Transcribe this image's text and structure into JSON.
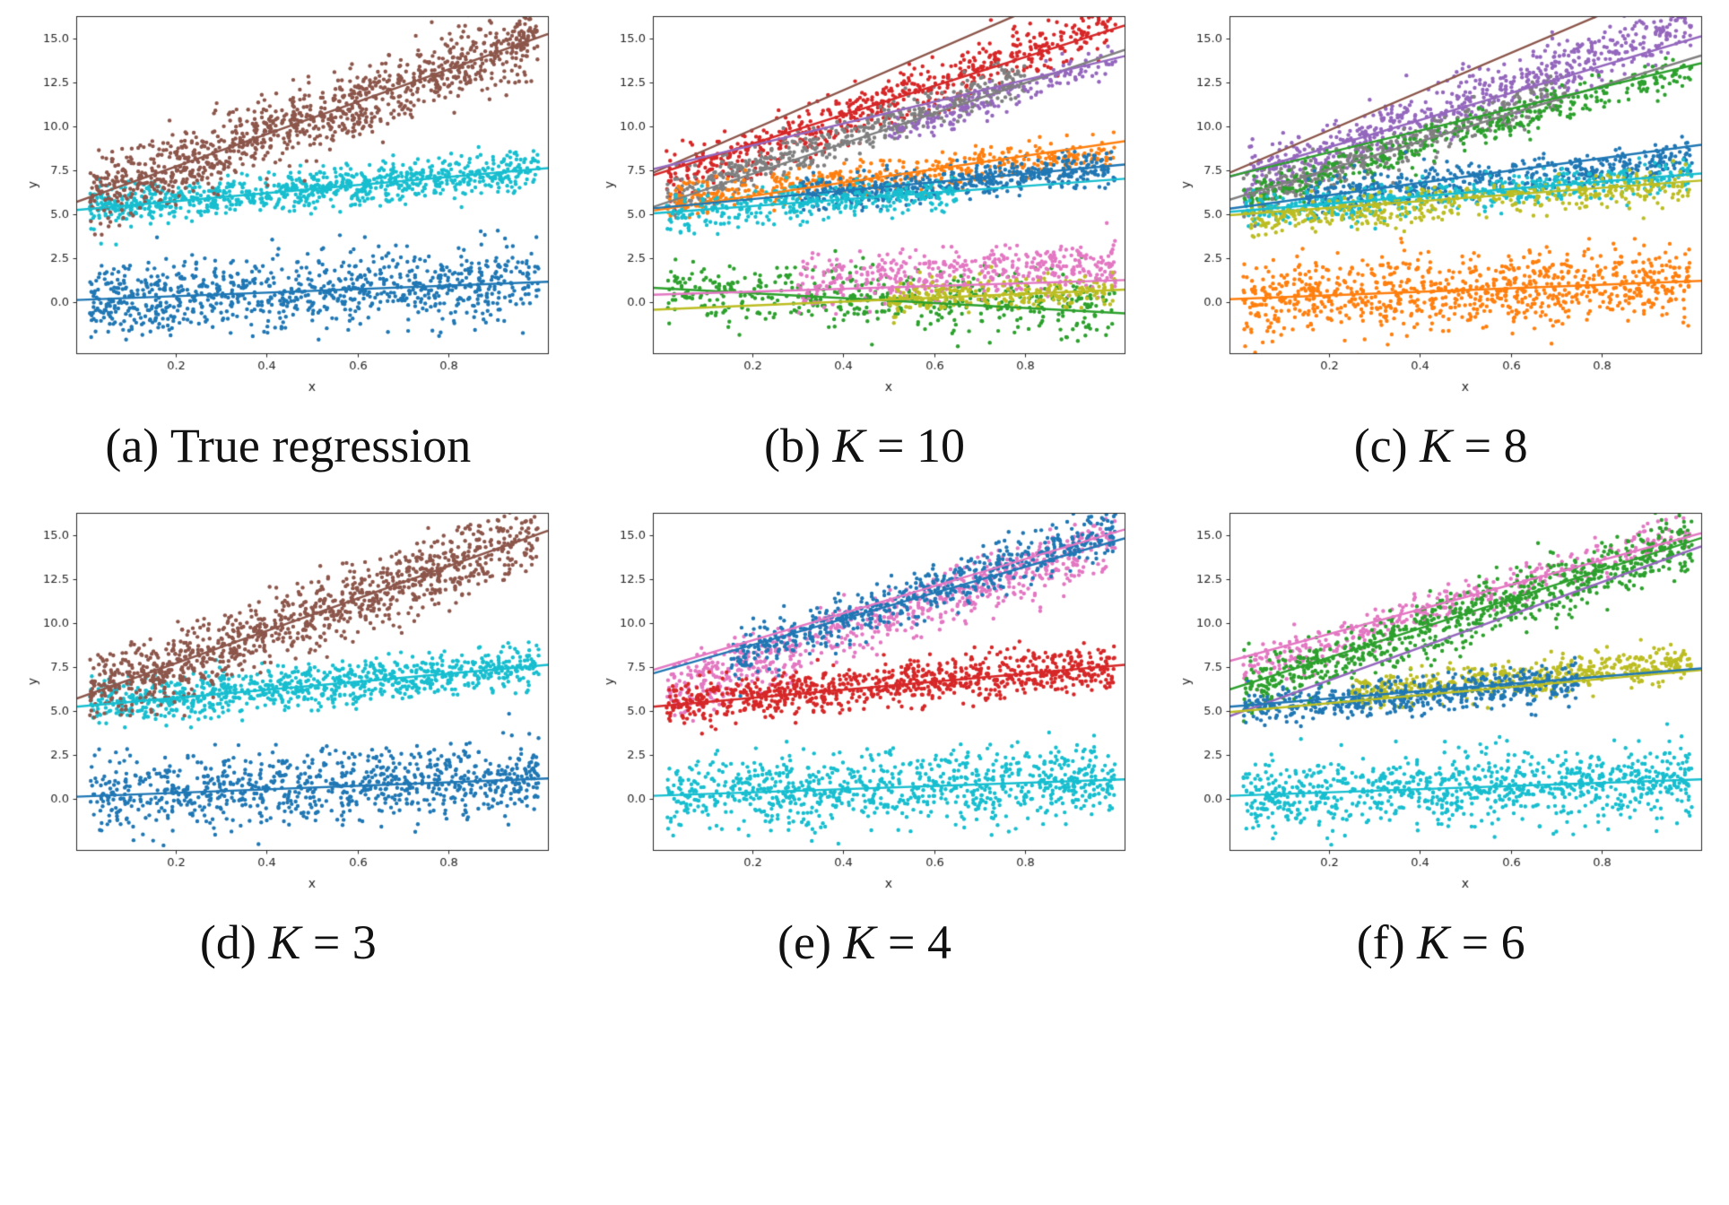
{
  "figure": {
    "background": "#ffffff",
    "layout": "2x3 grid of scatter subplots with captions below each subplot",
    "palette": {
      "blue": "#1f77b4",
      "orange": "#ff7f0e",
      "green": "#2ca02c",
      "red": "#d62728",
      "purple": "#9467bd",
      "brown": "#8c564b",
      "pink": "#e377c2",
      "gray": "#7f7f7f",
      "olive": "#bcbd22",
      "cyan": "#17becf"
    }
  },
  "chart_data": [
    {
      "id": "a",
      "type": "scatter",
      "caption": {
        "prefix": "(a) ",
        "var": "",
        "eq": "",
        "text": "True regression"
      },
      "xlabel": "x",
      "ylabel": "y",
      "xlim": [
        -0.02,
        1.02
      ],
      "ylim": [
        -2.9,
        16.3
      ],
      "xticks": [
        "0.2",
        "0.4",
        "0.6",
        "0.8"
      ],
      "yticks": [
        "0.0",
        "2.5",
        "5.0",
        "7.5",
        "10.0",
        "12.5",
        "15.0"
      ],
      "grid": false,
      "legend": false,
      "groups": [
        {
          "name": "cluster-low-blue",
          "color": "#1f77b4",
          "n": 900,
          "intercept": 0.15,
          "slope": 1.0,
          "noise": 1.05
        },
        {
          "name": "cluster-mid-cyan",
          "color": "#17becf",
          "n": 900,
          "intercept": 5.3,
          "slope": 2.3,
          "noise": 0.6
        },
        {
          "name": "cluster-high-brown",
          "color": "#8c564b",
          "n": 1100,
          "intercept": 5.9,
          "slope": 9.2,
          "noise": 1.0
        }
      ],
      "lines": [
        {
          "color": "#1f77b4",
          "intercept": 0.15,
          "slope": 1.0
        },
        {
          "color": "#17becf",
          "intercept": 5.3,
          "slope": 2.3
        },
        {
          "color": "#8c564b",
          "intercept": 5.9,
          "slope": 9.2
        }
      ]
    },
    {
      "id": "b",
      "type": "scatter",
      "caption": {
        "prefix": "(b) ",
        "var": "K",
        "eq": " = 10",
        "text": ""
      },
      "xlabel": "x",
      "ylabel": "y",
      "xlim": [
        -0.02,
        1.02
      ],
      "ylim": [
        -2.9,
        16.3
      ],
      "xticks": [
        "0.2",
        "0.4",
        "0.6",
        "0.8"
      ],
      "yticks": [
        "0.0",
        "2.5",
        "5.0",
        "7.5",
        "10.0",
        "12.5",
        "15.0"
      ],
      "grid": false,
      "legend": false,
      "groups": [
        {
          "name": "high-red",
          "color": "#d62728",
          "n": 650,
          "intercept": 6.8,
          "slope": 9.3,
          "noise": 0.75
        },
        {
          "name": "high-gray",
          "color": "#7f7f7f",
          "n": 500,
          "intercept": 5.9,
          "slope": 8.7,
          "noise": 0.6,
          "xrange": [
            0.01,
            0.8
          ]
        },
        {
          "name": "high-purple",
          "color": "#9467bd",
          "n": 180,
          "intercept": 5.3,
          "slope": 8.6,
          "noise": 0.45,
          "xrange": [
            0.5,
            1.0
          ]
        },
        {
          "name": "mid-orange",
          "color": "#ff7f0e",
          "n": 500,
          "intercept": 5.8,
          "slope": 2.8,
          "noise": 0.5
        },
        {
          "name": "mid-blue",
          "color": "#1f77b4",
          "n": 500,
          "intercept": 5.3,
          "slope": 2.4,
          "noise": 0.5,
          "xrange": [
            0.3,
            1.0
          ]
        },
        {
          "name": "mid-cyan",
          "color": "#17becf",
          "n": 350,
          "intercept": 5.0,
          "slope": 2.0,
          "noise": 0.55,
          "xrange": [
            0.01,
            0.65
          ]
        },
        {
          "name": "low-green",
          "color": "#2ca02c",
          "n": 500,
          "intercept": 0.7,
          "slope": -1.0,
          "noise": 0.8
        },
        {
          "name": "low-pink",
          "color": "#e377c2",
          "n": 450,
          "intercept": 0.6,
          "slope": 1.6,
          "noise": 0.75,
          "xrange": [
            0.3,
            1.0
          ]
        },
        {
          "name": "low-olive",
          "color": "#bcbd22",
          "n": 260,
          "intercept": -0.3,
          "slope": 1.0,
          "noise": 0.5,
          "xrange": [
            0.5,
            1.0
          ]
        }
      ],
      "lines": [
        {
          "color": "#8c564b",
          "intercept": 7.6,
          "slope": 11.2
        },
        {
          "color": "#d62728",
          "intercept": 7.4,
          "slope": 8.2
        },
        {
          "color": "#7f7f7f",
          "intercept": 5.6,
          "slope": 8.6
        },
        {
          "color": "#9467bd",
          "intercept": 7.7,
          "slope": 6.2
        },
        {
          "color": "#ff7f0e",
          "intercept": 5.3,
          "slope": 3.8
        },
        {
          "color": "#1f77b4",
          "intercept": 5.4,
          "slope": 2.4
        },
        {
          "color": "#17becf",
          "intercept": 5.1,
          "slope": 1.9
        },
        {
          "color": "#2ca02c",
          "intercept": 0.8,
          "slope": -1.4
        },
        {
          "color": "#e377c2",
          "intercept": 0.45,
          "slope": 0.8
        },
        {
          "color": "#bcbd22",
          "intercept": -0.4,
          "slope": 1.1
        }
      ]
    },
    {
      "id": "c",
      "type": "scatter",
      "caption": {
        "prefix": "(c) ",
        "var": "K",
        "eq": " = 8",
        "text": ""
      },
      "xlabel": "x",
      "ylabel": "y",
      "xlim": [
        -0.02,
        1.02
      ],
      "ylim": [
        -2.9,
        16.3
      ],
      "xticks": [
        "0.2",
        "0.4",
        "0.6",
        "0.8"
      ],
      "yticks": [
        "0.0",
        "2.5",
        "5.0",
        "7.5",
        "10.0",
        "12.5",
        "15.0"
      ],
      "grid": false,
      "legend": false,
      "groups": [
        {
          "name": "high-purple",
          "color": "#9467bd",
          "n": 700,
          "intercept": 6.7,
          "slope": 9.4,
          "noise": 0.8
        },
        {
          "name": "high-gray",
          "color": "#7f7f7f",
          "n": 420,
          "intercept": 5.8,
          "slope": 8.6,
          "noise": 0.55,
          "xrange": [
            0.01,
            0.72
          ]
        },
        {
          "name": "high-green",
          "color": "#2ca02c",
          "n": 400,
          "intercept": 5.9,
          "slope": 7.4,
          "noise": 0.5
        },
        {
          "name": "mid-blue",
          "color": "#1f77b4",
          "n": 480,
          "intercept": 5.6,
          "slope": 2.6,
          "noise": 0.5,
          "xrange": [
            0.15,
            1.0
          ]
        },
        {
          "name": "mid-cyan",
          "color": "#17becf",
          "n": 480,
          "intercept": 5.1,
          "slope": 2.1,
          "noise": 0.5
        },
        {
          "name": "mid-olive",
          "color": "#bcbd22",
          "n": 430,
          "intercept": 4.7,
          "slope": 2.0,
          "noise": 0.5
        },
        {
          "name": "low-orange",
          "color": "#ff7f0e",
          "n": 900,
          "intercept": 0.15,
          "slope": 1.0,
          "noise": 1.05
        }
      ],
      "lines": [
        {
          "color": "#8c564b",
          "intercept": 7.6,
          "slope": 11.0
        },
        {
          "color": "#9467bd",
          "intercept": 7.3,
          "slope": 7.7
        },
        {
          "color": "#7f7f7f",
          "intercept": 6.0,
          "slope": 7.9
        },
        {
          "color": "#2ca02c",
          "intercept": 7.3,
          "slope": 6.2
        },
        {
          "color": "#1f77b4",
          "intercept": 5.4,
          "slope": 3.5
        },
        {
          "color": "#17becf",
          "intercept": 5.2,
          "slope": 2.1
        },
        {
          "color": "#bcbd22",
          "intercept": 5.0,
          "slope": 1.9
        },
        {
          "color": "#ff7f0e",
          "intercept": 0.2,
          "slope": 1.0
        }
      ]
    },
    {
      "id": "d",
      "type": "scatter",
      "caption": {
        "prefix": "(d) ",
        "var": "K",
        "eq": " = 3",
        "text": ""
      },
      "xlabel": "x",
      "ylabel": "y",
      "xlim": [
        -0.02,
        1.02
      ],
      "ylim": [
        -2.9,
        16.3
      ],
      "xticks": [
        "0.2",
        "0.4",
        "0.6",
        "0.8"
      ],
      "yticks": [
        "0.0",
        "2.5",
        "5.0",
        "7.5",
        "10.0",
        "12.5",
        "15.0"
      ],
      "grid": false,
      "legend": false,
      "groups": [
        {
          "name": "cluster-low-blue",
          "color": "#1f77b4",
          "n": 900,
          "intercept": 0.15,
          "slope": 1.0,
          "noise": 1.05
        },
        {
          "name": "cluster-mid-cyan",
          "color": "#17becf",
          "n": 900,
          "intercept": 5.3,
          "slope": 2.3,
          "noise": 0.6
        },
        {
          "name": "cluster-high-brown",
          "color": "#8c564b",
          "n": 1100,
          "intercept": 5.9,
          "slope": 9.2,
          "noise": 1.0
        }
      ],
      "lines": [
        {
          "color": "#1f77b4",
          "intercept": 0.15,
          "slope": 1.0
        },
        {
          "color": "#17becf",
          "intercept": 5.3,
          "slope": 2.3
        },
        {
          "color": "#8c564b",
          "intercept": 5.9,
          "slope": 9.2
        }
      ]
    },
    {
      "id": "e",
      "type": "scatter",
      "caption": {
        "prefix": "(e) ",
        "var": "K",
        "eq": " = 4",
        "text": ""
      },
      "xlabel": "x",
      "ylabel": "y",
      "xlim": [
        -0.02,
        1.02
      ],
      "ylim": [
        -2.9,
        16.3
      ],
      "xticks": [
        "0.2",
        "0.4",
        "0.6",
        "0.8"
      ],
      "yticks": [
        "0.0",
        "2.5",
        "5.0",
        "7.5",
        "10.0",
        "12.5",
        "15.0"
      ],
      "grid": false,
      "legend": false,
      "groups": [
        {
          "name": "high-pink",
          "color": "#e377c2",
          "n": 750,
          "intercept": 6.0,
          "slope": 8.7,
          "noise": 0.85
        },
        {
          "name": "high-blue",
          "color": "#1f77b4",
          "n": 600,
          "intercept": 6.6,
          "slope": 8.9,
          "noise": 0.7,
          "xrange": [
            0.15,
            1.0
          ]
        },
        {
          "name": "mid-red",
          "color": "#d62728",
          "n": 900,
          "intercept": 5.3,
          "slope": 2.3,
          "noise": 0.65
        },
        {
          "name": "low-cyan",
          "color": "#17becf",
          "n": 900,
          "intercept": 0.15,
          "slope": 1.0,
          "noise": 1.05
        }
      ],
      "lines": [
        {
          "color": "#e377c2",
          "intercept": 7.5,
          "slope": 7.7
        },
        {
          "color": "#1f77b4",
          "intercept": 7.3,
          "slope": 7.4
        },
        {
          "color": "#d62728",
          "intercept": 5.3,
          "slope": 2.3
        },
        {
          "color": "#17becf",
          "intercept": 0.2,
          "slope": 0.9
        }
      ]
    },
    {
      "id": "f",
      "type": "scatter",
      "caption": {
        "prefix": "(f) ",
        "var": "K",
        "eq": " = 6",
        "text": ""
      },
      "xlabel": "x",
      "ylabel": "y",
      "xlim": [
        -0.02,
        1.02
      ],
      "ylim": [
        -2.9,
        16.3
      ],
      "xticks": [
        "0.2",
        "0.4",
        "0.6",
        "0.8"
      ],
      "yticks": [
        "0.0",
        "2.5",
        "5.0",
        "7.5",
        "10.0",
        "12.5",
        "15.0"
      ],
      "grid": false,
      "legend": false,
      "groups": [
        {
          "name": "high-pink",
          "color": "#e377c2",
          "n": 400,
          "intercept": 7.2,
          "slope": 8.2,
          "noise": 0.55
        },
        {
          "name": "high-green",
          "color": "#2ca02c",
          "n": 850,
          "intercept": 6.0,
          "slope": 8.7,
          "noise": 0.85
        },
        {
          "name": "mid-olive",
          "color": "#bcbd22",
          "n": 520,
          "intercept": 5.5,
          "slope": 2.3,
          "noise": 0.5,
          "xrange": [
            0.25,
            1.0
          ]
        },
        {
          "name": "mid-blue",
          "color": "#1f77b4",
          "n": 520,
          "intercept": 5.1,
          "slope": 2.0,
          "noise": 0.5,
          "xrange": [
            0.01,
            0.75
          ]
        },
        {
          "name": "low-cyan",
          "color": "#17becf",
          "n": 900,
          "intercept": 0.15,
          "slope": 1.0,
          "noise": 1.05
        }
      ],
      "lines": [
        {
          "color": "#e377c2",
          "intercept": 8.0,
          "slope": 7.0
        },
        {
          "color": "#2ca02c",
          "intercept": 6.4,
          "slope": 8.3
        },
        {
          "color": "#9467bd",
          "intercept": 4.9,
          "slope": 9.3
        },
        {
          "color": "#bcbd22",
          "intercept": 5.0,
          "slope": 2.3
        },
        {
          "color": "#1f77b4",
          "intercept": 5.3,
          "slope": 2.1
        },
        {
          "color": "#17becf",
          "intercept": 0.2,
          "slope": 0.9
        }
      ]
    }
  ]
}
